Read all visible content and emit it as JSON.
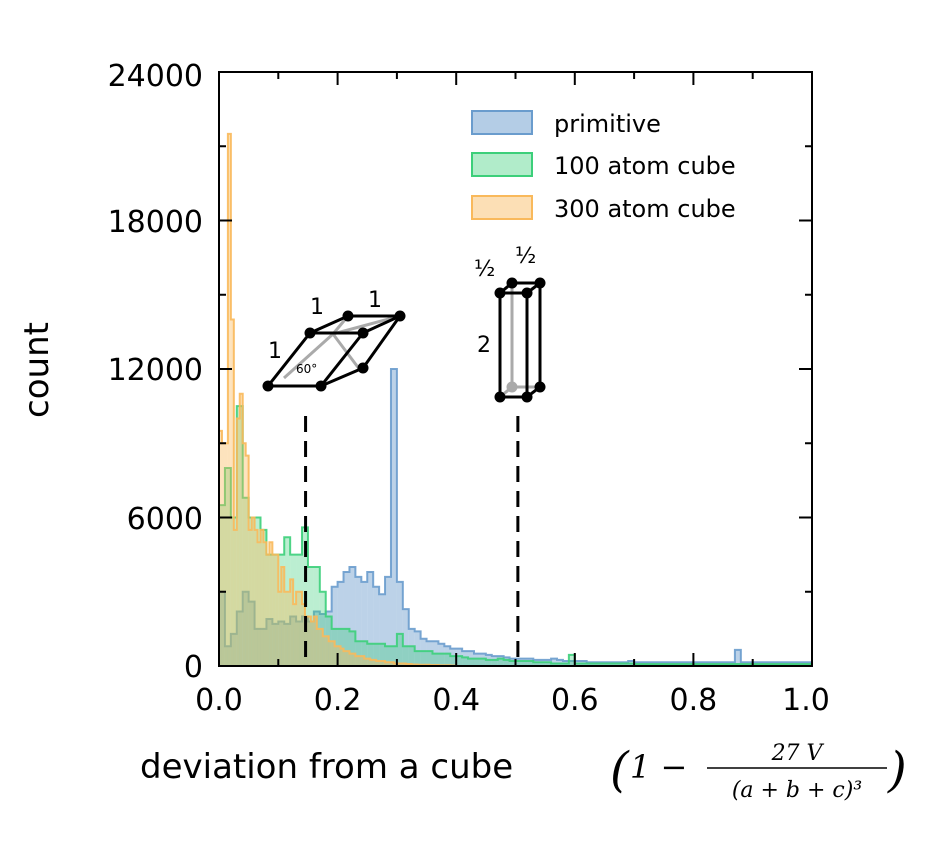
{
  "chart_data": {
    "type": "histogram",
    "xlabel": "deviation from a cube",
    "xlabel_math": {
      "open": "(",
      "one": "1 −",
      "numerator": "27 V",
      "denominator": "(a + b + c)³",
      "close": ")"
    },
    "ylabel": "count",
    "xlim": [
      0.0,
      1.0
    ],
    "ylim": [
      0,
      24000
    ],
    "x_ticks": [
      "0.0",
      "0.2",
      "0.4",
      "0.6",
      "0.8",
      "1.0"
    ],
    "y_ticks": [
      "0",
      "6000",
      "12000",
      "18000",
      "24000"
    ],
    "legend_position": "top-right",
    "series": [
      {
        "name": "primitive",
        "color": "#6a9ccd",
        "bin_width": 0.01,
        "values": [
          3000,
          800,
          1300,
          2200,
          3000,
          2600,
          1500,
          1500,
          1900,
          1700,
          1800,
          1700,
          2000,
          1800,
          2000,
          1800,
          2200,
          2100,
          2200,
          3200,
          3400,
          3800,
          4000,
          3600,
          3400,
          3800,
          3200,
          2900,
          3600,
          12000,
          3400,
          2300,
          1500,
          1400,
          1100,
          1000,
          1000,
          900,
          800,
          700,
          700,
          600,
          600,
          500,
          500,
          450,
          400,
          400,
          350,
          300,
          300,
          300,
          300,
          250,
          250,
          250,
          300,
          250,
          200,
          200,
          200,
          200,
          150,
          150,
          150,
          150,
          150,
          150,
          150,
          200,
          150,
          150,
          150,
          150,
          150,
          150,
          150,
          150,
          150,
          150,
          150,
          150,
          150,
          150,
          150,
          150,
          150,
          650,
          150,
          150,
          150,
          150,
          150,
          150,
          150,
          150,
          150,
          150,
          150,
          150
        ]
      },
      {
        "name": "100 atom cube",
        "color": "#3ccf7a",
        "bin_width": 0.01,
        "values": [
          6500,
          8000,
          6000,
          10500,
          6800,
          6000,
          6000,
          5500,
          4500,
          4500,
          4500,
          5200,
          4500,
          4500,
          5600,
          4000,
          4000,
          3000,
          2000,
          1500,
          1500,
          1500,
          1400,
          1000,
          1000,
          900,
          900,
          900,
          800,
          800,
          1300,
          800,
          800,
          600,
          600,
          600,
          500,
          500,
          500,
          400,
          400,
          350,
          300,
          300,
          300,
          250,
          250,
          300,
          250,
          200,
          200,
          200,
          200,
          150,
          150,
          150,
          100,
          100,
          100,
          450,
          100,
          100,
          100,
          100,
          100,
          100,
          100,
          100,
          100,
          100,
          80,
          80,
          80,
          80,
          80,
          80,
          80,
          80,
          80,
          80,
          80,
          80,
          80,
          80,
          80,
          80,
          80,
          80,
          80,
          80,
          80,
          80,
          80,
          80,
          80,
          80,
          80,
          80,
          80,
          80
        ]
      },
      {
        "name": "300 atom cube",
        "color": "#f9b95b",
        "bin_width": 0.005,
        "values": [
          9500,
          9000,
          9000,
          21500,
          14000,
          5500,
          10000,
          11000,
          9000,
          8500,
          5500,
          6000,
          5500,
          5000,
          5500,
          5000,
          4500,
          5000,
          4500,
          4500,
          3000,
          4000,
          3000,
          3000,
          3500,
          2500,
          3000,
          3000,
          2500,
          2000,
          2000,
          1800,
          2000,
          1500,
          1500,
          1200,
          1200,
          1000,
          1000,
          800,
          800,
          700,
          600,
          600,
          500,
          500,
          400,
          400,
          400,
          300,
          300,
          250,
          250,
          200,
          200,
          200,
          150,
          150,
          150,
          100,
          100,
          100,
          100,
          80,
          80,
          60,
          60,
          50,
          50,
          50,
          50,
          40,
          40,
          40,
          30,
          30,
          30,
          30,
          20,
          20
        ]
      }
    ],
    "dashed_lines_x": [
      0.146,
      0.504
    ]
  },
  "insets": {
    "rhombohedral": {
      "edge_labels": [
        "1",
        "1",
        "1"
      ],
      "angle_label": "60°"
    },
    "tetragonal": {
      "edge_labels": [
        "½",
        "½",
        "2"
      ]
    }
  }
}
